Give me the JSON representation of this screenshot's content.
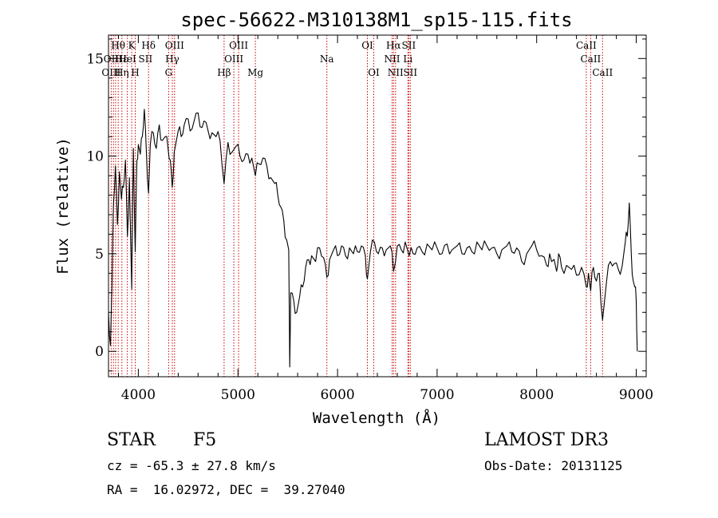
{
  "chart_data": {
    "type": "line",
    "title": "spec-56622-M310138M1_sp15-115.fits",
    "xlabel": "Wavelength (Å)",
    "ylabel": "Flux (relative)",
    "xlim": [
      3700,
      9100
    ],
    "ylim": [
      -1.3,
      16.2
    ],
    "x_ticks": [
      4000,
      5000,
      6000,
      7000,
      8000,
      9000
    ],
    "y_ticks": [
      0,
      5,
      10,
      15
    ],
    "grid": false,
    "legend": "none",
    "series": [
      {
        "color": "#000000",
        "points": [
          [
            3700,
            2.0
          ],
          [
            3720,
            0.3
          ],
          [
            3735,
            3.5
          ],
          [
            3750,
            7.5
          ],
          [
            3770,
            9.5
          ],
          [
            3790,
            6.5
          ],
          [
            3810,
            9.2
          ],
          [
            3830,
            7.8
          ],
          [
            3850,
            8.4
          ],
          [
            3870,
            9.8
          ],
          [
            3890,
            5.9
          ],
          [
            3910,
            8.9
          ],
          [
            3933,
            3.2
          ],
          [
            3950,
            10.4
          ],
          [
            3968,
            5.1
          ],
          [
            3985,
            9.8
          ],
          [
            4000,
            10.6
          ],
          [
            4020,
            10.1
          ],
          [
            4040,
            11.0
          ],
          [
            4060,
            12.4
          ],
          [
            4080,
            10.3
          ],
          [
            4102,
            8.1
          ],
          [
            4120,
            10.6
          ],
          [
            4150,
            11.2
          ],
          [
            4180,
            10.4
          ],
          [
            4210,
            11.6
          ],
          [
            4240,
            10.8
          ],
          [
            4270,
            11.0
          ],
          [
            4300,
            10.3
          ],
          [
            4320,
            9.8
          ],
          [
            4340,
            8.4
          ],
          [
            4360,
            10.2
          ],
          [
            4400,
            11.3
          ],
          [
            4430,
            11.0
          ],
          [
            4460,
            11.6
          ],
          [
            4500,
            11.9
          ],
          [
            4540,
            11.4
          ],
          [
            4580,
            12.2
          ],
          [
            4620,
            11.5
          ],
          [
            4660,
            11.8
          ],
          [
            4700,
            11.3
          ],
          [
            4740,
            11.2
          ],
          [
            4780,
            11.0
          ],
          [
            4820,
            10.8
          ],
          [
            4861,
            8.6
          ],
          [
            4900,
            10.7
          ],
          [
            4940,
            10.2
          ],
          [
            4980,
            10.5
          ],
          [
            5020,
            10.0
          ],
          [
            5060,
            9.8
          ],
          [
            5100,
            10.1
          ],
          [
            5140,
            9.9
          ],
          [
            5175,
            9.0
          ],
          [
            5210,
            9.6
          ],
          [
            5250,
            9.9
          ],
          [
            5290,
            9.5
          ],
          [
            5330,
            8.9
          ],
          [
            5370,
            8.6
          ],
          [
            5400,
            8.0
          ],
          [
            5430,
            7.4
          ],
          [
            5460,
            6.7
          ],
          [
            5490,
            5.7
          ],
          [
            5510,
            5.2
          ],
          [
            5520,
            -0.8
          ],
          [
            5530,
            3.0
          ],
          [
            5560,
            2.6
          ],
          [
            5590,
            2.0
          ],
          [
            5620,
            2.8
          ],
          [
            5650,
            3.3
          ],
          [
            5680,
            4.3
          ],
          [
            5710,
            4.7
          ],
          [
            5740,
            4.9
          ],
          [
            5780,
            4.6
          ],
          [
            5820,
            5.3
          ],
          [
            5860,
            4.8
          ],
          [
            5893,
            3.8
          ],
          [
            5920,
            4.7
          ],
          [
            5960,
            5.2
          ],
          [
            6000,
            4.9
          ],
          [
            6040,
            5.4
          ],
          [
            6080,
            4.9
          ],
          [
            6120,
            5.3
          ],
          [
            6160,
            5.0
          ],
          [
            6200,
            5.1
          ],
          [
            6240,
            5.4
          ],
          [
            6280,
            4.9
          ],
          [
            6300,
            3.7
          ],
          [
            6330,
            5.1
          ],
          [
            6370,
            5.6
          ],
          [
            6410,
            5.0
          ],
          [
            6450,
            5.3
          ],
          [
            6490,
            5.2
          ],
          [
            6530,
            5.4
          ],
          [
            6563,
            4.1
          ],
          [
            6600,
            5.4
          ],
          [
            6640,
            5.2
          ],
          [
            6680,
            5.6
          ],
          [
            6720,
            4.9
          ],
          [
            6760,
            5.0
          ],
          [
            6800,
            5.3
          ],
          [
            6850,
            5.1
          ],
          [
            6900,
            5.5
          ],
          [
            6950,
            5.2
          ],
          [
            7000,
            5.3
          ],
          [
            7050,
            5.0
          ],
          [
            7100,
            5.5
          ],
          [
            7150,
            5.2
          ],
          [
            7200,
            5.4
          ],
          [
            7250,
            5.0
          ],
          [
            7300,
            5.3
          ],
          [
            7350,
            5.1
          ],
          [
            7400,
            5.6
          ],
          [
            7450,
            5.2
          ],
          [
            7500,
            5.4
          ],
          [
            7550,
            5.3
          ],
          [
            7600,
            5.0
          ],
          [
            7650,
            5.2
          ],
          [
            7700,
            5.4
          ],
          [
            7750,
            5.1
          ],
          [
            7800,
            5.3
          ],
          [
            7850,
            4.6
          ],
          [
            7900,
            5.0
          ],
          [
            7950,
            5.4
          ],
          [
            8000,
            5.2
          ],
          [
            8050,
            4.9
          ],
          [
            8100,
            4.4
          ],
          [
            8130,
            5.0
          ],
          [
            8150,
            4.6
          ],
          [
            8200,
            4.1
          ],
          [
            8220,
            5.0
          ],
          [
            8250,
            4.3
          ],
          [
            8300,
            4.4
          ],
          [
            8350,
            4.2
          ],
          [
            8400,
            3.9
          ],
          [
            8450,
            4.3
          ],
          [
            8498,
            3.3
          ],
          [
            8520,
            4.0
          ],
          [
            8542,
            3.1
          ],
          [
            8570,
            4.3
          ],
          [
            8600,
            3.6
          ],
          [
            8630,
            4.0
          ],
          [
            8662,
            1.6
          ],
          [
            8700,
            3.5
          ],
          [
            8740,
            4.6
          ],
          [
            8780,
            4.5
          ],
          [
            8820,
            4.2
          ],
          [
            8860,
            4.4
          ],
          [
            8890,
            5.6
          ],
          [
            8910,
            5.9
          ],
          [
            8930,
            7.6
          ],
          [
            8950,
            5.0
          ],
          [
            8970,
            3.6
          ],
          [
            8985,
            3.3
          ],
          [
            9000,
            2.6
          ],
          [
            9010,
            0.0
          ]
        ]
      }
    ],
    "line_markers": {
      "color": "#cc0000",
      "wavelengths": [
        3727,
        3750,
        3771,
        3798,
        3835,
        3889,
        3933,
        3968,
        4102,
        4304,
        4341,
        4363,
        4861,
        4959,
        5007,
        5175,
        5893,
        6300,
        6364,
        6548,
        6563,
        6583,
        6707,
        6716,
        6731,
        8498,
        8542,
        8662
      ]
    },
    "line_labels": [
      {
        "text": "Hθ",
        "wavelength": 3797,
        "row": 0
      },
      {
        "text": "K",
        "wavelength": 3933,
        "row": 0
      },
      {
        "text": "Hδ",
        "wavelength": 4102,
        "row": 0
      },
      {
        "text": "OIII",
        "wavelength": 4363,
        "row": 0
      },
      {
        "text": "OIII",
        "wavelength": 5007,
        "row": 0
      },
      {
        "text": "OI",
        "wavelength": 6300,
        "row": 0
      },
      {
        "text": "Hα",
        "wavelength": 6563,
        "row": 0
      },
      {
        "text": "SII",
        "wavelength": 6716,
        "row": 0
      },
      {
        "text": "CaII",
        "wavelength": 8498,
        "row": 0
      },
      {
        "text": "OII",
        "wavelength": 3727,
        "row": 1
      },
      {
        "text": "Hε",
        "wavelength": 3830,
        "row": 1
      },
      {
        "text": "HeI",
        "wavelength": 3889,
        "row": 1
      },
      {
        "text": "SII",
        "wavelength": 4072,
        "row": 1
      },
      {
        "text": "Hγ",
        "wavelength": 4341,
        "row": 1
      },
      {
        "text": "OIII",
        "wavelength": 4959,
        "row": 1
      },
      {
        "text": "Na",
        "wavelength": 5893,
        "row": 1
      },
      {
        "text": "NII",
        "wavelength": 6548,
        "row": 1
      },
      {
        "text": "Li",
        "wavelength": 6707,
        "row": 1
      },
      {
        "text": "CaII",
        "wavelength": 8542,
        "row": 1
      },
      {
        "text": "OIII",
        "wavelength": 3727,
        "row": 2
      },
      {
        "text": "Hη",
        "wavelength": 3835,
        "row": 2
      },
      {
        "text": "H",
        "wavelength": 3968,
        "row": 2
      },
      {
        "text": "G",
        "wavelength": 4304,
        "row": 2
      },
      {
        "text": "Hβ",
        "wavelength": 4861,
        "row": 2
      },
      {
        "text": "Mg",
        "wavelength": 5175,
        "row": 2
      },
      {
        "text": "OI",
        "wavelength": 6364,
        "row": 2
      },
      {
        "text": "NII",
        "wavelength": 6583,
        "row": 2
      },
      {
        "text": "SII",
        "wavelength": 6731,
        "row": 2
      },
      {
        "text": "CaII",
        "wavelength": 8662,
        "row": 2
      }
    ]
  },
  "info": {
    "class": "STAR",
    "subclass": "F5",
    "survey": "LAMOST DR3",
    "cz": "cz = -65.3 ± 27.8 km/s",
    "obs_date": "Obs-Date: 20131125",
    "coords": "RA =  16.02972, DEC =  39.27040"
  }
}
